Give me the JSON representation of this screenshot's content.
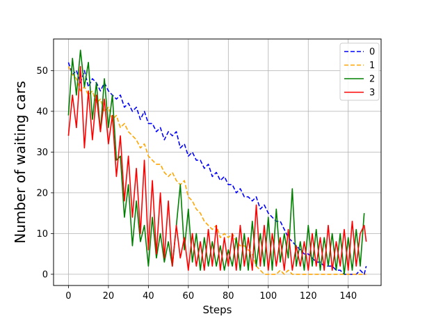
{
  "chart_data": {
    "type": "line",
    "xlabel": "Steps",
    "ylabel": "Number of waiting cars",
    "xlim": [
      -7.45,
      156.45
    ],
    "ylim": [
      -2.75,
      57.75
    ],
    "xticks": [
      0,
      20,
      40,
      60,
      80,
      100,
      120,
      140
    ],
    "yticks": [
      0,
      10,
      20,
      30,
      40,
      50
    ],
    "grid": true,
    "legend_position": "top-right",
    "series": [
      {
        "name": "0",
        "color": "#0000ff",
        "style": "dashed",
        "x": [
          0,
          2,
          4,
          6,
          8,
          10,
          12,
          14,
          16,
          18,
          20,
          22,
          24,
          26,
          28,
          30,
          32,
          34,
          36,
          38,
          40,
          42,
          44,
          46,
          48,
          50,
          52,
          54,
          56,
          58,
          60,
          62,
          64,
          66,
          68,
          70,
          72,
          74,
          76,
          78,
          80,
          82,
          84,
          86,
          88,
          90,
          92,
          94,
          96,
          98,
          100,
          102,
          104,
          106,
          108,
          110,
          112,
          114,
          116,
          118,
          120,
          122,
          124,
          126,
          128,
          130,
          132,
          134,
          136,
          138,
          140,
          142,
          144,
          146,
          148,
          149
        ],
        "values": [
          52,
          49,
          50,
          47,
          50,
          46,
          48,
          47,
          45,
          47,
          45,
          44,
          43,
          44,
          41,
          42,
          40,
          41,
          38,
          40,
          37,
          37,
          35,
          36,
          33,
          35,
          34,
          35,
          31,
          32,
          29,
          30,
          28,
          28,
          26,
          27,
          24,
          25,
          23,
          24,
          22,
          22,
          20,
          21,
          19,
          19,
          18,
          19,
          16,
          17,
          15,
          14,
          13,
          13,
          11,
          9,
          8,
          7,
          6,
          5,
          5,
          4,
          3,
          3,
          2,
          2,
          2,
          1,
          1,
          0,
          0,
          0,
          0,
          1,
          0,
          2
        ]
      },
      {
        "name": "1",
        "color": "#ffa500",
        "style": "dashed",
        "x": [
          0,
          2,
          4,
          6,
          8,
          10,
          12,
          14,
          16,
          18,
          20,
          22,
          24,
          26,
          28,
          30,
          32,
          34,
          36,
          38,
          40,
          42,
          44,
          46,
          48,
          50,
          52,
          54,
          56,
          58,
          60,
          62,
          64,
          66,
          68,
          70,
          72,
          74,
          76,
          78,
          80,
          82,
          84,
          86,
          88,
          90,
          92,
          94,
          96,
          98,
          100,
          102,
          104,
          106,
          108,
          110,
          112,
          114,
          116,
          118,
          120,
          122,
          124,
          126,
          128,
          130,
          132,
          134,
          136,
          138,
          140,
          142,
          144,
          146,
          148,
          149
        ],
        "values": [
          51,
          49,
          48,
          45,
          46,
          44,
          45,
          42,
          43,
          40,
          41,
          38,
          39,
          36,
          37,
          35,
          34,
          33,
          31,
          32,
          29,
          28,
          27,
          27,
          25,
          24,
          25,
          23,
          22,
          23,
          19,
          18,
          16,
          15,
          13,
          12,
          11,
          12,
          9,
          10,
          9,
          10,
          8,
          7,
          7,
          6,
          5,
          2,
          1,
          0,
          0,
          0,
          0,
          1,
          0,
          1,
          0,
          0,
          0,
          0,
          0,
          0,
          0,
          0,
          0,
          0,
          0,
          0,
          0,
          0,
          0,
          0,
          0,
          0,
          0,
          0
        ]
      },
      {
        "name": "2",
        "color": "#008000",
        "style": "solid",
        "x": [
          0,
          2,
          4,
          6,
          8,
          10,
          12,
          14,
          16,
          18,
          20,
          22,
          24,
          26,
          28,
          30,
          32,
          34,
          36,
          38,
          40,
          42,
          44,
          46,
          48,
          50,
          52,
          54,
          56,
          58,
          60,
          62,
          64,
          66,
          68,
          70,
          72,
          74,
          76,
          78,
          80,
          82,
          84,
          86,
          88,
          90,
          92,
          94,
          96,
          98,
          100,
          102,
          104,
          106,
          108,
          110,
          112,
          114,
          116,
          118,
          120,
          122,
          124,
          126,
          128,
          130,
          132,
          134,
          136,
          138,
          140,
          142,
          144,
          146,
          148
        ],
        "values": [
          39,
          53,
          44,
          55,
          46,
          52,
          38,
          47,
          35,
          48,
          36,
          44,
          28,
          29,
          14,
          22,
          7,
          18,
          8,
          12,
          2,
          14,
          4,
          10,
          3,
          8,
          2,
          12,
          22,
          6,
          16,
          3,
          10,
          1,
          9,
          2,
          8,
          2,
          7,
          1,
          6,
          2,
          9,
          1,
          10,
          1,
          13,
          2,
          10,
          2,
          14,
          1,
          16,
          3,
          10,
          4,
          21,
          2,
          8,
          1,
          12,
          2,
          11,
          1,
          9,
          2,
          10,
          1,
          10,
          0,
          9,
          1,
          11,
          2,
          15
        ]
      },
      {
        "name": "3",
        "color": "#ff0000",
        "style": "solid",
        "x": [
          0,
          2,
          4,
          6,
          8,
          10,
          12,
          14,
          16,
          18,
          20,
          22,
          24,
          26,
          28,
          30,
          32,
          34,
          36,
          38,
          40,
          42,
          44,
          46,
          48,
          50,
          52,
          54,
          56,
          58,
          60,
          62,
          64,
          66,
          68,
          70,
          72,
          74,
          76,
          78,
          80,
          82,
          84,
          86,
          88,
          90,
          92,
          94,
          96,
          98,
          100,
          102,
          104,
          106,
          108,
          110,
          112,
          114,
          116,
          118,
          120,
          122,
          124,
          126,
          128,
          130,
          132,
          134,
          136,
          138,
          140,
          142,
          144,
          146,
          148,
          149
        ],
        "values": [
          34,
          44,
          36,
          51,
          31,
          45,
          33,
          44,
          35,
          43,
          32,
          39,
          24,
          34,
          18,
          29,
          14,
          26,
          10,
          28,
          6,
          23,
          5,
          20,
          4,
          18,
          2,
          12,
          4,
          9,
          1,
          10,
          2,
          8,
          1,
          11,
          2,
          12,
          1,
          9,
          2,
          10,
          1,
          12,
          2,
          9,
          1,
          17,
          2,
          12,
          1,
          10,
          2,
          9,
          1,
          11,
          1,
          7,
          2,
          8,
          1,
          10,
          2,
          9,
          1,
          12,
          1,
          8,
          2,
          11,
          1,
          13,
          2,
          10,
          12,
          8
        ]
      }
    ]
  }
}
